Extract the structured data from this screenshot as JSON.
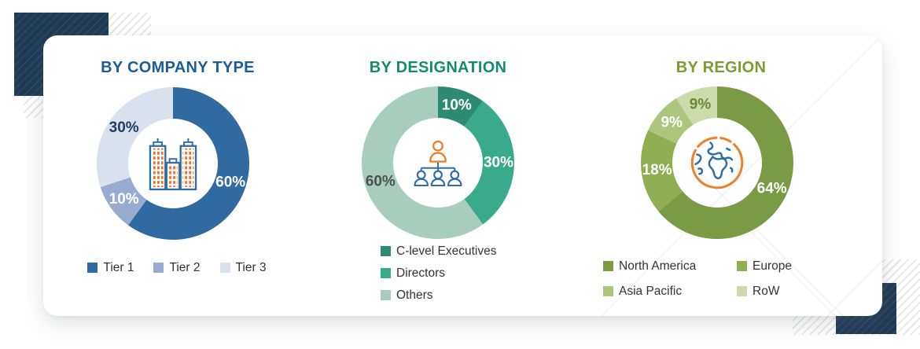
{
  "page": {
    "background": "#ffffff",
    "navy_accent": "#1e3a55"
  },
  "chart_data": [
    {
      "type": "pie",
      "variant": "donut",
      "title": "BY COMPANY TYPE",
      "title_color": "#1d5c97",
      "center_icon": "buildings-icon",
      "legend_position": "bottom-row",
      "start_angle_deg": 0,
      "direction": "clockwise",
      "categories": [
        "Tier 1",
        "Tier 2",
        "Tier 3"
      ],
      "values": [
        60,
        10,
        30
      ],
      "slices": [
        {
          "label": "Tier 1",
          "value": 60,
          "display": "60%",
          "color": "#316aa1",
          "label_color": "#ffffff"
        },
        {
          "label": "Tier 2",
          "value": 10,
          "display": "10%",
          "color": "#98abd0",
          "label_color": "#ffffff"
        },
        {
          "label": "Tier 3",
          "value": 30,
          "display": "30%",
          "color": "#d9e0ee",
          "label_color": "#1e3c64"
        }
      ]
    },
    {
      "type": "pie",
      "variant": "donut",
      "title": "BY DESIGNATION",
      "title_color": "#148a71",
      "center_icon": "org-chart-icon",
      "legend_position": "bottom-column",
      "start_angle_deg": 0,
      "direction": "clockwise",
      "categories": [
        "C-level Executives",
        "Directors",
        "Others"
      ],
      "values": [
        10,
        30,
        60
      ],
      "slices": [
        {
          "label": "C-level Executives",
          "value": 10,
          "display": "10%",
          "color": "#2d8a73",
          "label_color": "#ffffff"
        },
        {
          "label": "Directors",
          "value": 30,
          "display": "30%",
          "color": "#3aaa8d",
          "label_color": "#ffffff"
        },
        {
          "label": "Others",
          "value": 60,
          "display": "60%",
          "color": "#a7cebd",
          "label_color": "#4e4e4e"
        }
      ]
    },
    {
      "type": "pie",
      "variant": "donut",
      "title": "BY REGION",
      "title_color": "#7c9b31",
      "center_icon": "globe-icon",
      "legend_position": "bottom-grid-2col",
      "start_angle_deg": 0,
      "direction": "clockwise",
      "categories": [
        "North America",
        "Europe",
        "Asia Pacific",
        "RoW"
      ],
      "values": [
        64,
        18,
        9,
        9
      ],
      "slices": [
        {
          "label": "North America",
          "value": 64,
          "display": "64%",
          "color": "#7b9a45",
          "label_color": "#ffffff"
        },
        {
          "label": "Europe",
          "value": 18,
          "display": "18%",
          "color": "#90ae52",
          "label_color": "#ffffff"
        },
        {
          "label": "Asia Pacific",
          "value": 9,
          "display": "9%",
          "color": "#acc67d",
          "label_color": "#ffffff"
        },
        {
          "label": "RoW",
          "value": 9,
          "display": "9%",
          "color": "#cbdcaa",
          "label_color": "#6a8636"
        }
      ]
    }
  ]
}
